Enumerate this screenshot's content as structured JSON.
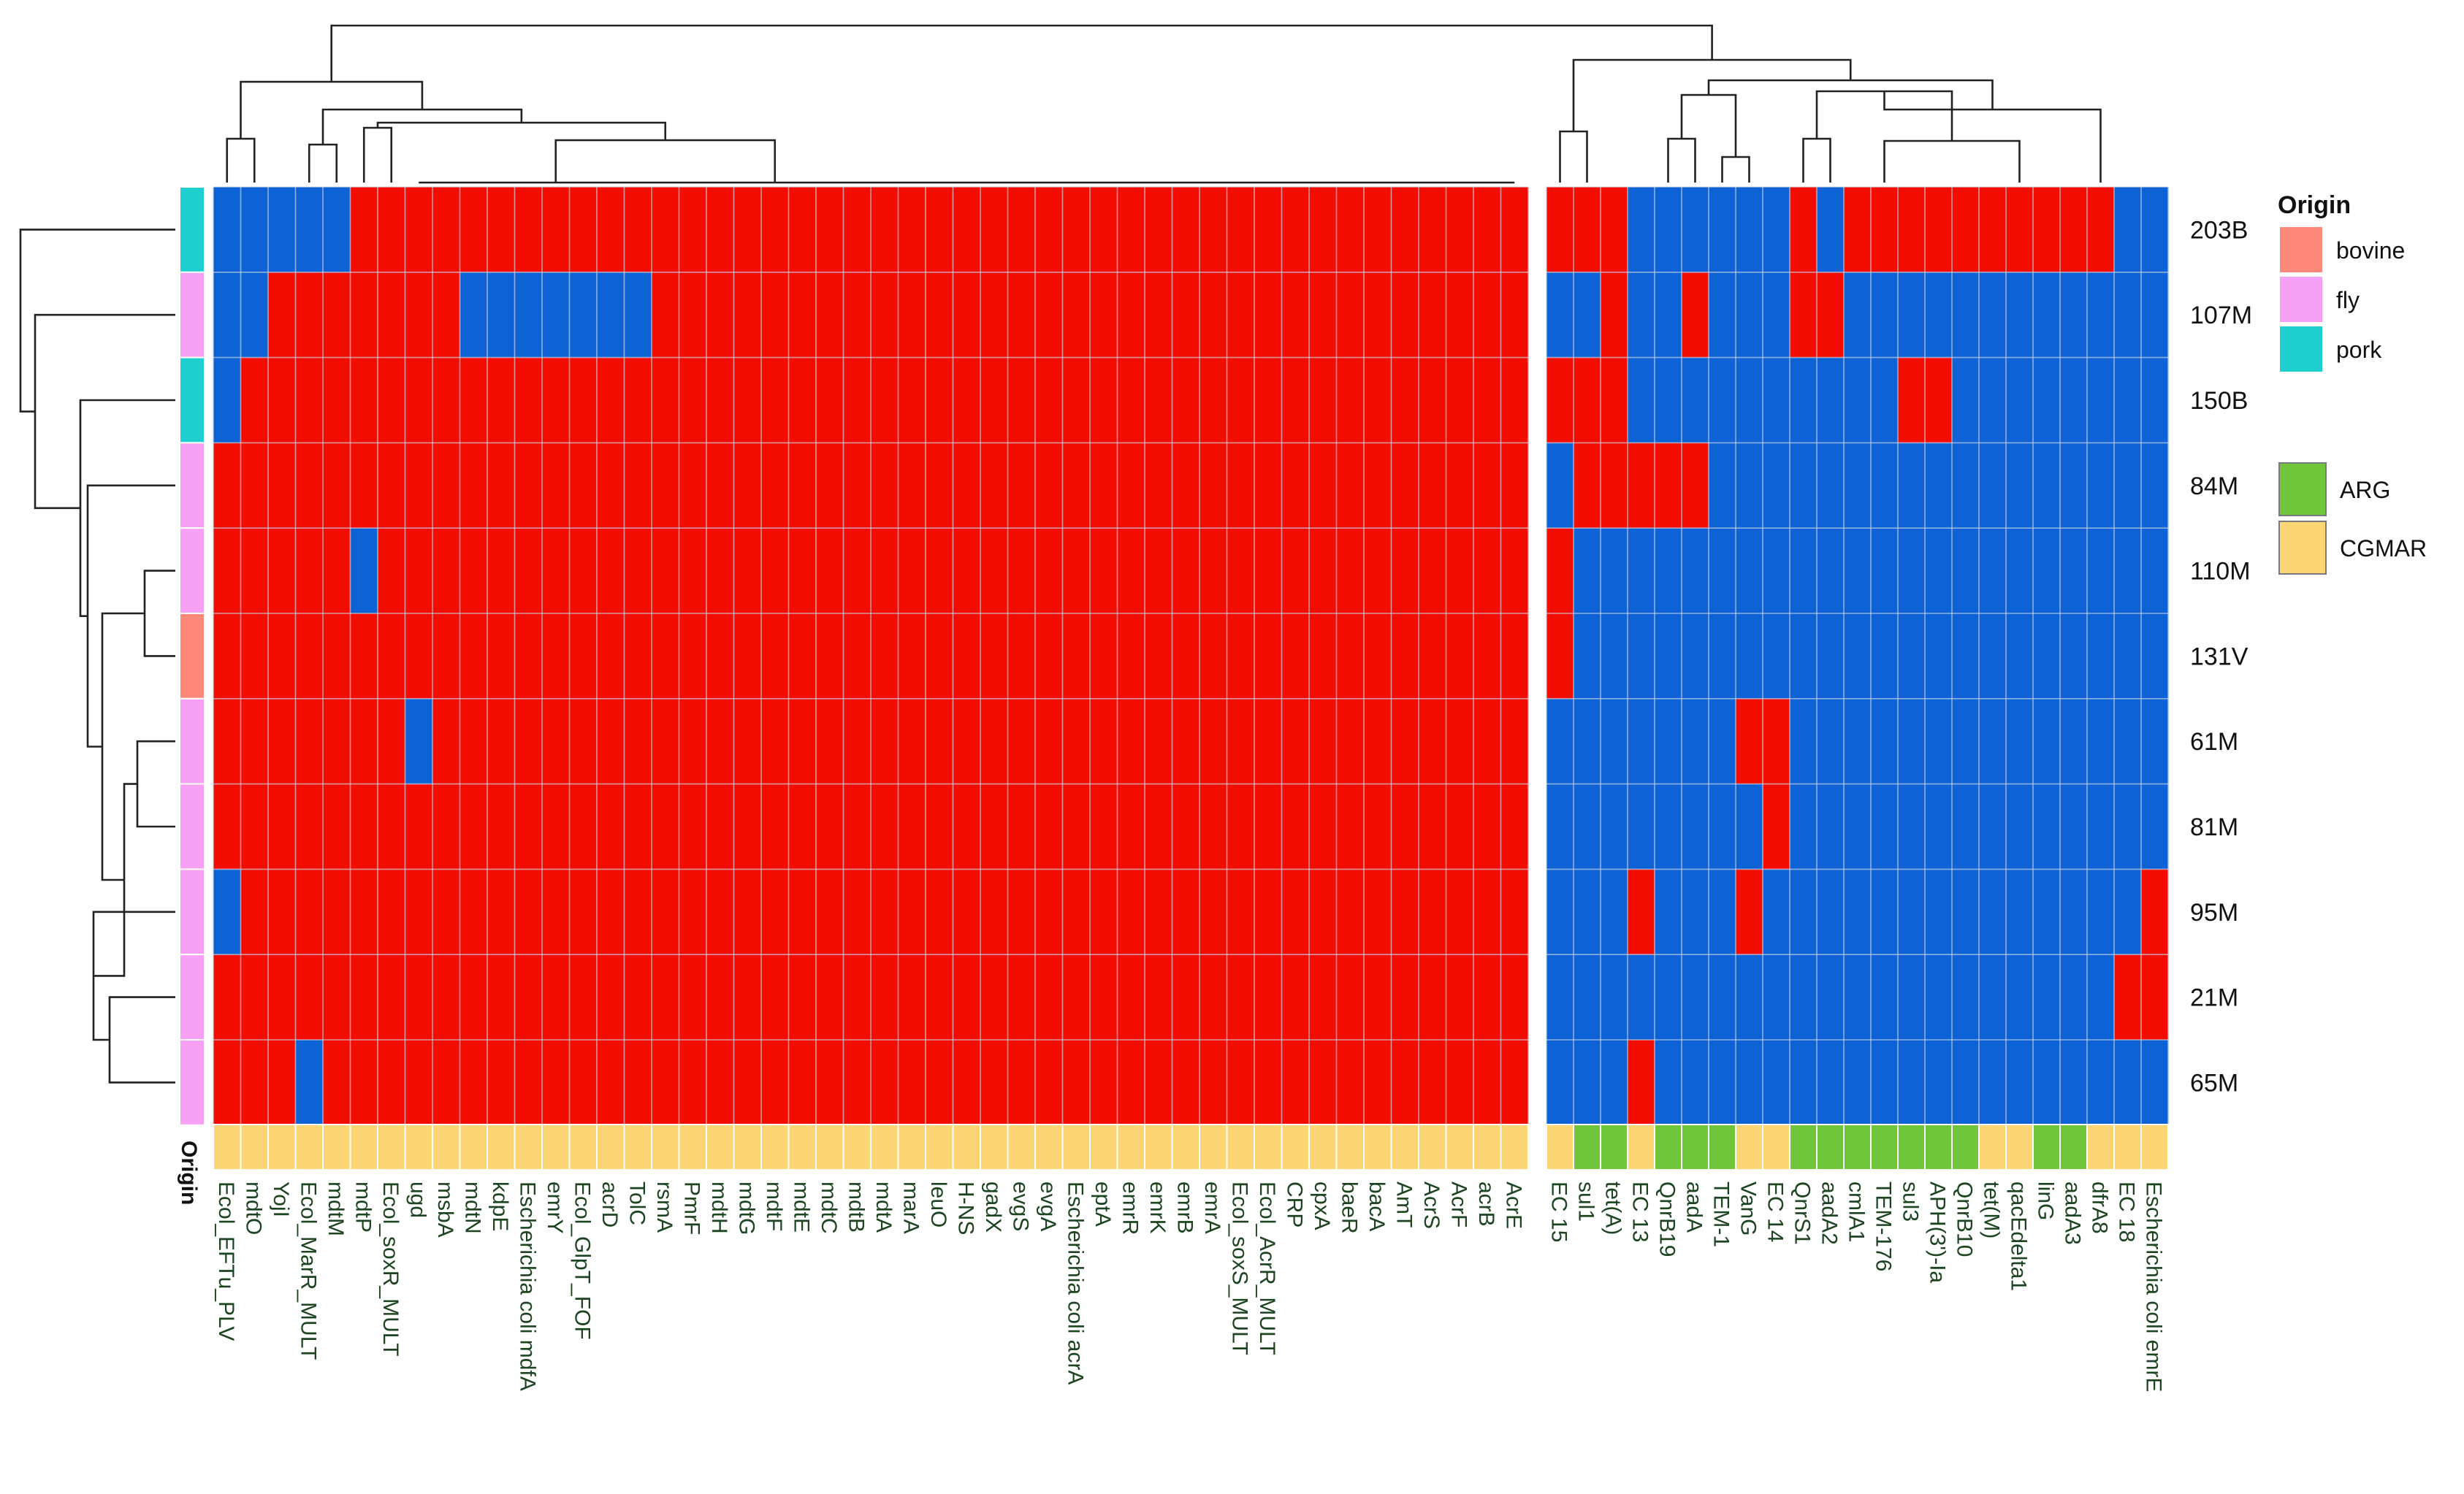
{
  "chart_data": {
    "type": "heatmap",
    "title": "",
    "colors": {
      "present": "#f30c00",
      "absent": "#0d63d6",
      "grid": "#c8d2e6",
      "label_text": "#1c4420",
      "row_text": "#111111",
      "dendrogram": "#222222"
    },
    "origin_colors": {
      "bovine": "#fb8878",
      "fly": "#f6a0f6",
      "pork": "#1ecfcf"
    },
    "type_colors": {
      "ARG": "#71c53b",
      "CGMAR": "#fcd674"
    },
    "origin_axis_label": "Origin",
    "rows": [
      "203B",
      "107M",
      "150B",
      "84M",
      "110M",
      "131V",
      "61M",
      "81M",
      "95M",
      "21M",
      "65M"
    ],
    "row_origin": [
      "pork",
      "fly",
      "pork",
      "fly",
      "fly",
      "bovine",
      "fly",
      "fly",
      "fly",
      "fly",
      "fly"
    ],
    "columns_left": [
      "Ecol_EFTu_PLV",
      "mdtO",
      "YojI",
      "Ecol_MarR_MULT",
      "mdtM",
      "mdtP",
      "Ecol_soxR_MULT",
      "ugd",
      "msbA",
      "mdtN",
      "kdpE",
      "Escherichia coli mdfA",
      "emrY",
      "Ecol_GlpT_FOF",
      "acrD",
      "TolC",
      "rsmA",
      "PmrF",
      "mdtH",
      "mdtG",
      "mdtF",
      "mdtE",
      "mdtC",
      "mdtB",
      "mdtA",
      "marA",
      "leuO",
      "H-NS",
      "gadX",
      "evgS",
      "evgA",
      "Escherichia coli acrA",
      "eptA",
      "emrR",
      "emrK",
      "emrB",
      "emrA",
      "Ecol_soxS_MULT",
      "Ecol_AcrR_MULT",
      "CRP",
      "cpxA",
      "baeR",
      "bacA",
      "AmT",
      "AcrS",
      "AcrF",
      "acrB",
      "AcrE"
    ],
    "columns_right": [
      "EC 15",
      "sul1",
      "tet(A)",
      "EC 13",
      "QnrB19",
      "aadA",
      "TEM-1",
      "VanG",
      "EC 14",
      "QnrS1",
      "aadA2",
      "cmlA1",
      "TEM-176",
      "sul3",
      "APH(3')-Ia",
      "QnrB10",
      "tet(M)",
      "qacEdelta1",
      "linG",
      "aadA3",
      "dfrA8",
      "EC 18",
      "Escherichia coli emrE"
    ],
    "column_type_left": "CGMAR",
    "column_type_right": [
      "CGMAR",
      "ARG",
      "ARG",
      "CGMAR",
      "ARG",
      "ARG",
      "ARG",
      "CGMAR",
      "CGMAR",
      "ARG",
      "ARG",
      "ARG",
      "ARG",
      "ARG",
      "ARG",
      "ARG",
      "CGMAR",
      "CGMAR",
      "ARG",
      "ARG",
      "CGMAR",
      "CGMAR",
      "CGMAR"
    ],
    "values_left": [
      "000001111111111111111111111111111111111111111111",
      "001111111000000011111111111111111111111111111111",
      "011111111111111111111111111111111111111111111111",
      "111111111111111111111111111111111111111111111111",
      "111110111111111111111111111111111111111111111111",
      "111111111111111111111111111111111111111111111111",
      "111111101111111111111111111111111111111111111111",
      "111111111111111111111111111111111111111111111111",
      "011111111111111111111111111111111111111111111111",
      "111111111111111111111111111111111111111111111111",
      "111011111111111111111111111111111111111111111111"
    ],
    "values_right": [
      "11100000010111111111100",
      "00100100011000000000000",
      "11100000000001100000000",
      "01111100000000000000000",
      "10000000000000000000000",
      "10000000000000000000000",
      "00000001100000000000000",
      "00000000100000000000000",
      "00010001000000000000001",
      "00000000000000000000011",
      "00010000000000000000000"
    ],
    "legend": {
      "origin_title": "Origin",
      "origin_entries": [
        "bovine",
        "fly",
        "pork"
      ],
      "type_entries": [
        "ARG",
        "CGMAR"
      ]
    }
  }
}
